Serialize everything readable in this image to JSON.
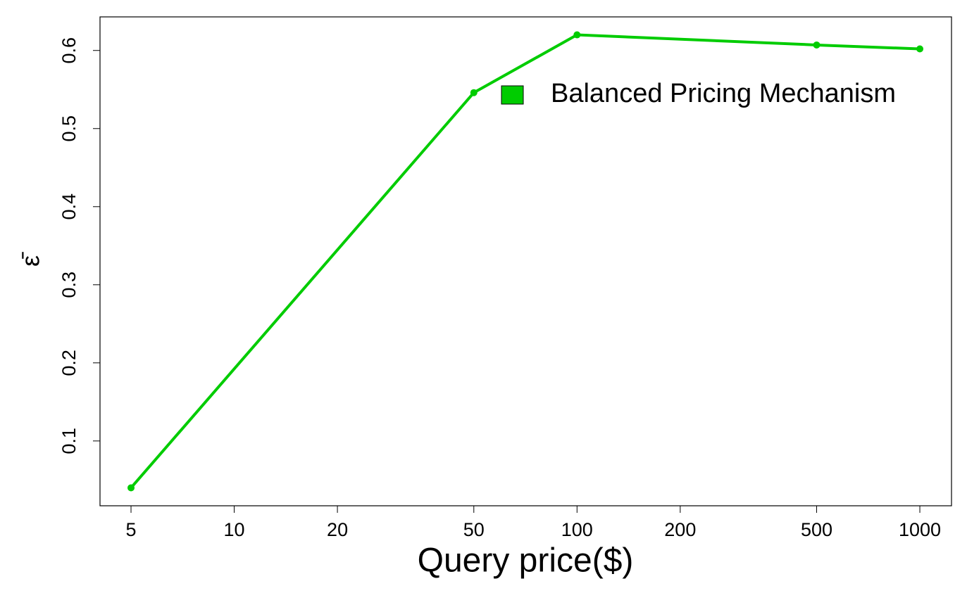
{
  "chart_data": {
    "type": "line",
    "x_label": "Query price($)",
    "y_label": "ε̄",
    "x": [
      5,
      50,
      100,
      500,
      1000
    ],
    "series": [
      {
        "name": "Balanced Pricing Mechanism",
        "color": "#00cc00",
        "values": [
          0.04,
          0.546,
          0.62,
          0.607,
          0.602
        ]
      }
    ],
    "xlim": [
      4.06,
      1237
    ],
    "ylim": [
      0.017,
      0.643
    ],
    "xticks": [
      5,
      10,
      20,
      50,
      100,
      200,
      500,
      1000
    ],
    "yticks": [
      0.1,
      0.2,
      0.3,
      0.4,
      0.5,
      0.6
    ],
    "x_log": true,
    "legend": "top-right"
  }
}
